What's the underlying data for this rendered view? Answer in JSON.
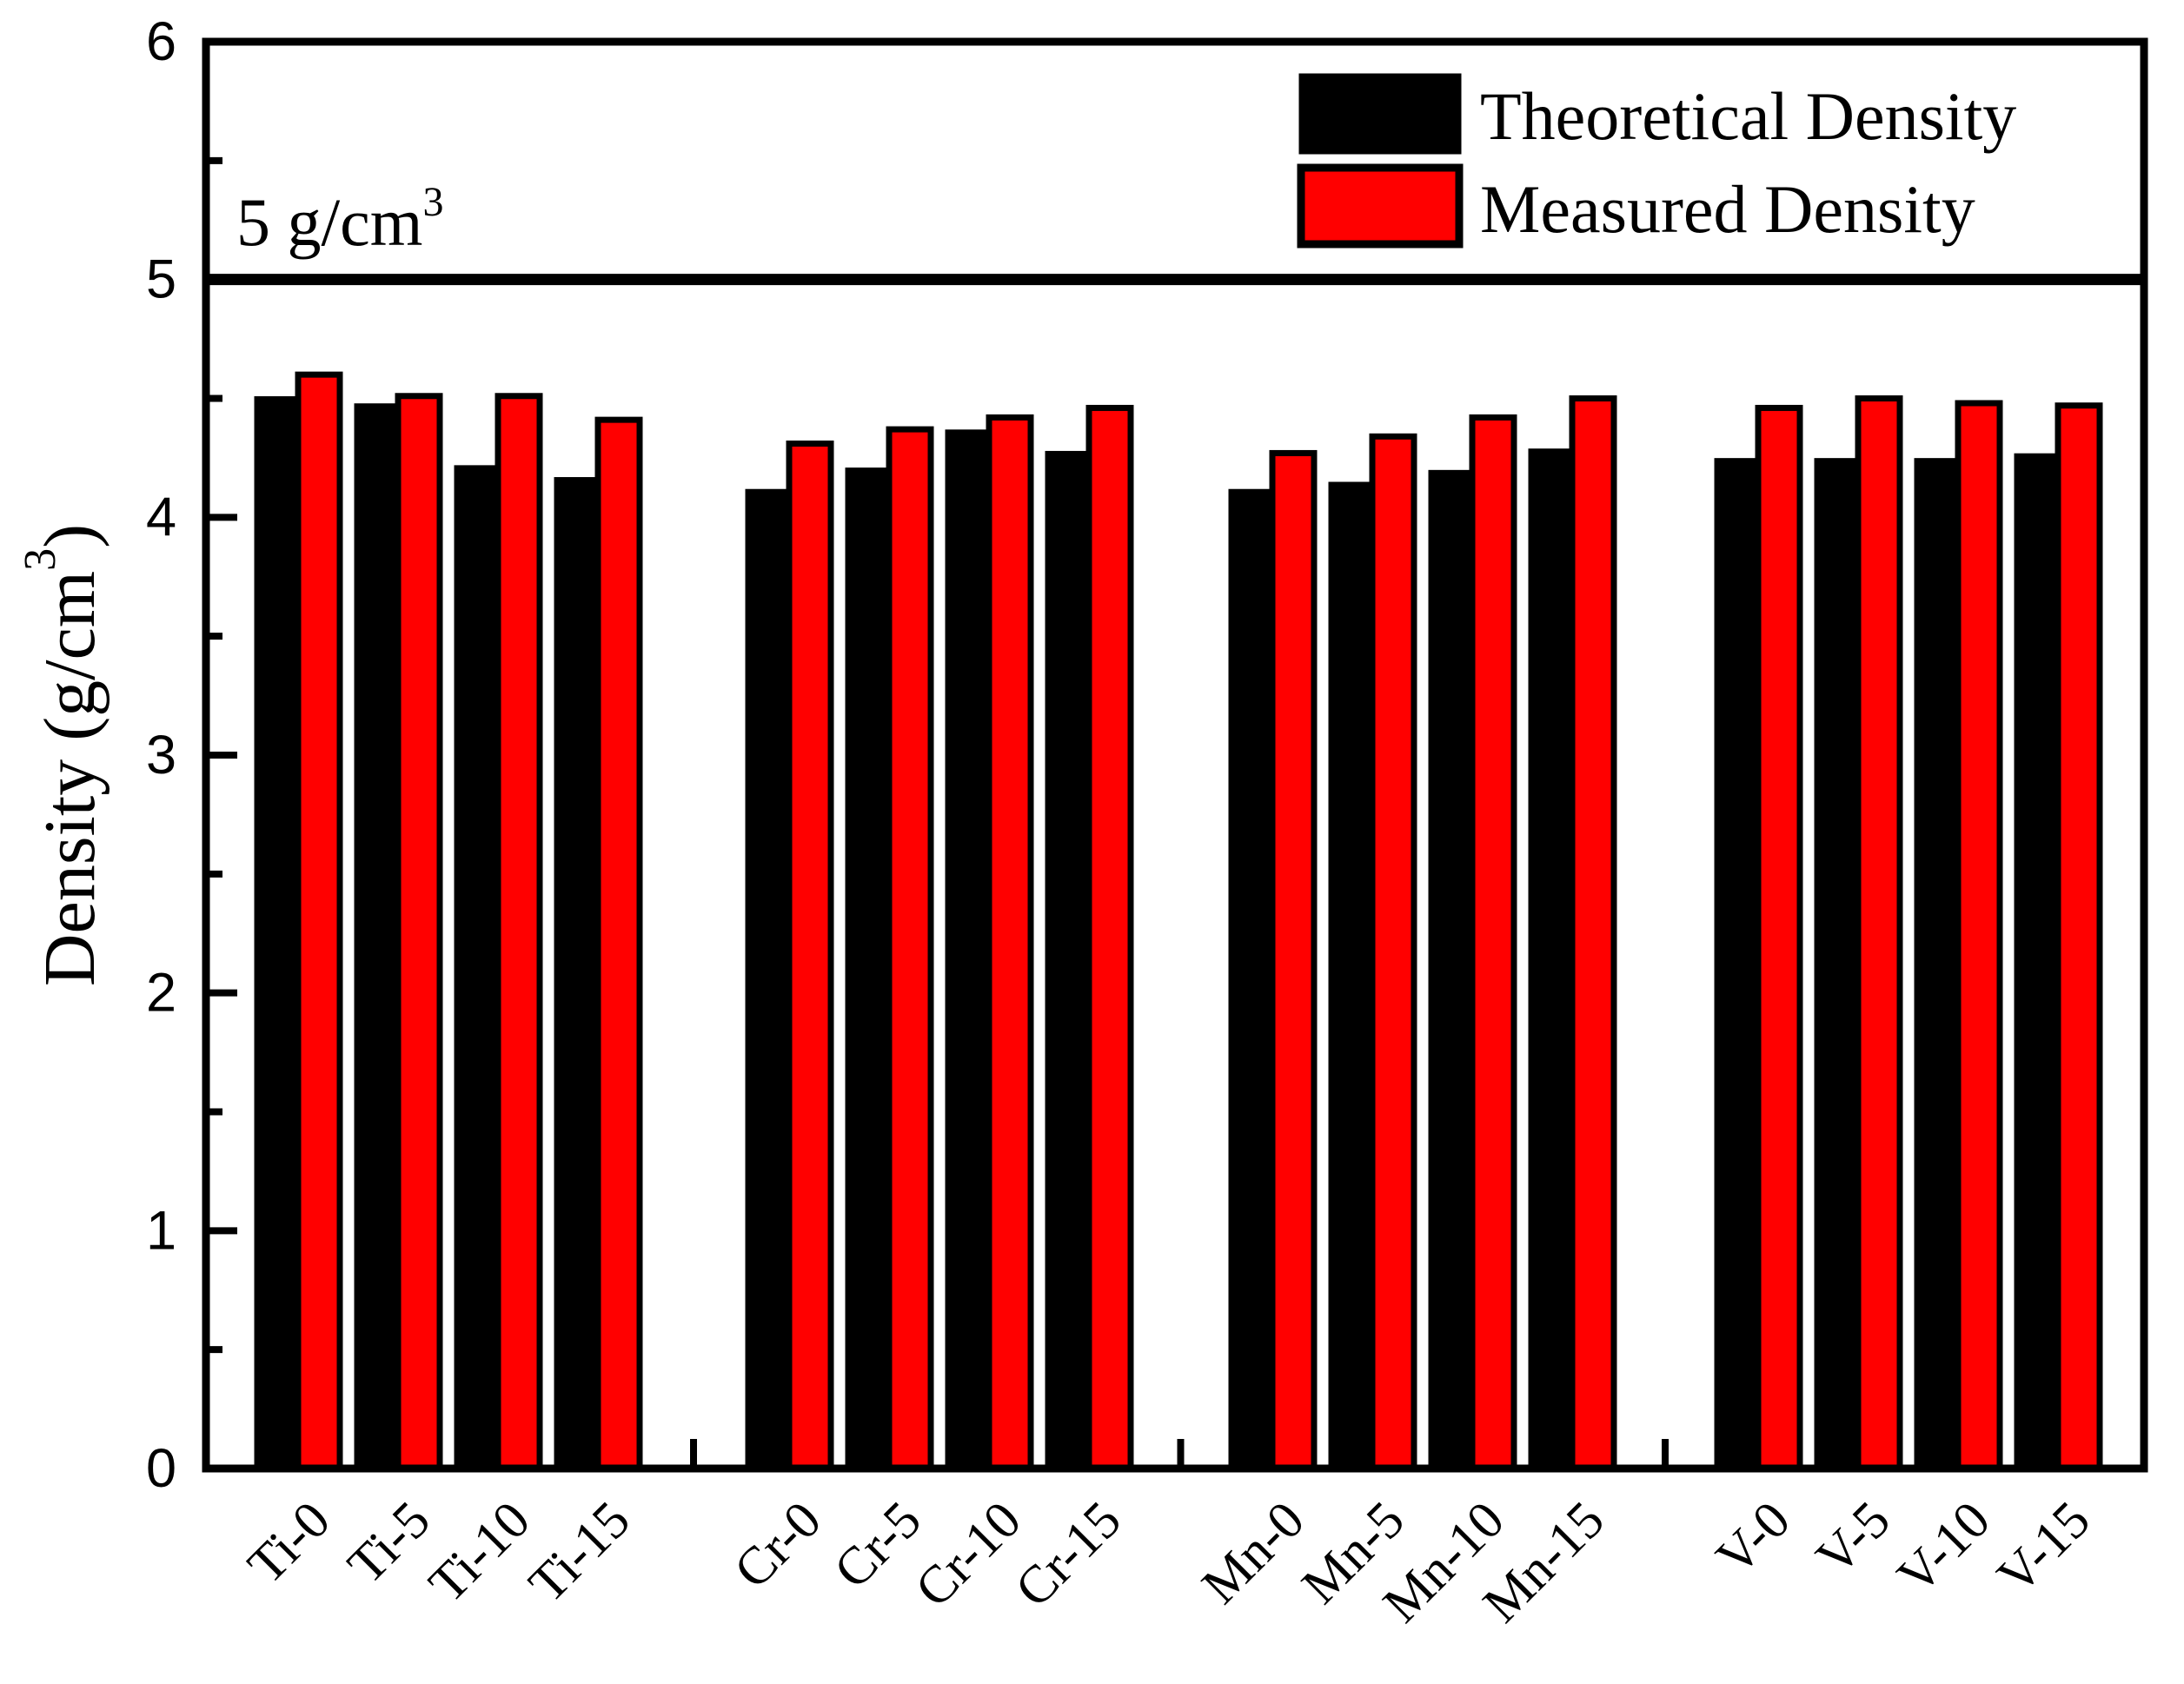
{
  "chart_data": {
    "type": "bar",
    "title": "",
    "xlabel": "",
    "ylabel": {
      "full": "Density (g/cm³)",
      "pre": "Density (g/cm",
      "sup": "3",
      "post": ")"
    },
    "ylim": [
      0,
      6
    ],
    "yticks": [
      "0",
      "1",
      "2",
      "3",
      "4",
      "5",
      "6"
    ],
    "minor_tick_step": 0.5,
    "grid": false,
    "legend_position": "top-right-inside",
    "annotation": {
      "full": "5 g/cm³",
      "pre": "5 g/cm",
      "sup": "3",
      "value": 5
    },
    "categories": [
      "Ti-0",
      "Ti-5",
      "Ti-10",
      "Ti-15",
      "Cr-0",
      "Cr-5",
      "Cr-10",
      "Cr-15",
      "Mn-0",
      "Mn-5",
      "Mn-10",
      "Mn-15",
      "V-0",
      "V-5",
      "V-10",
      "V-15"
    ],
    "group_size": 4,
    "series": [
      {
        "name": "Theoretical Density",
        "color": "#000000",
        "values": [
          4.5,
          4.47,
          4.21,
          4.16,
          4.11,
          4.2,
          4.36,
          4.27,
          4.11,
          4.14,
          4.19,
          4.28,
          4.24,
          4.24,
          4.24,
          4.26
        ]
      },
      {
        "name": "Measured Density",
        "color": "#FF0000",
        "values": [
          4.6,
          4.51,
          4.51,
          4.41,
          4.31,
          4.37,
          4.42,
          4.46,
          4.27,
          4.34,
          4.42,
          4.5,
          4.46,
          4.5,
          4.48,
          4.47
        ]
      }
    ],
    "colors": {
      "axis": "#000000",
      "background": "#FFFFFF",
      "reference_line": "#000000"
    }
  }
}
